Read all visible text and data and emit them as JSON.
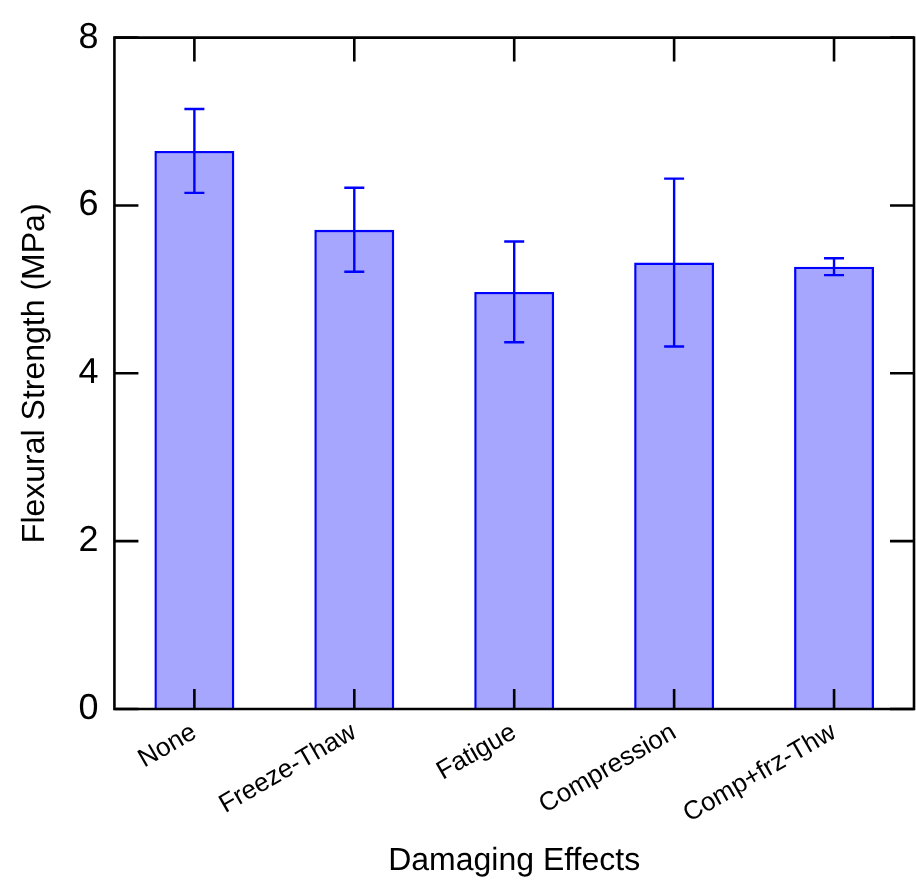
{
  "chart_data": {
    "type": "bar",
    "xlabel": "Damaging Effects",
    "ylabel": "Flexural Strength (MPa)",
    "categories": [
      "None",
      "Freeze-Thaw",
      "Fatigue",
      "Compression",
      "Comp+frz-Thw"
    ],
    "values": [
      6.65,
      5.71,
      4.97,
      5.32,
      5.27
    ],
    "errors": [
      0.5,
      0.5,
      0.6,
      1.0,
      0.1
    ],
    "color": "#0000ff",
    "ylim": [
      0,
      8
    ],
    "yticks": [
      0,
      2,
      4,
      6,
      8
    ],
    "grid": false,
    "legend": false
  }
}
